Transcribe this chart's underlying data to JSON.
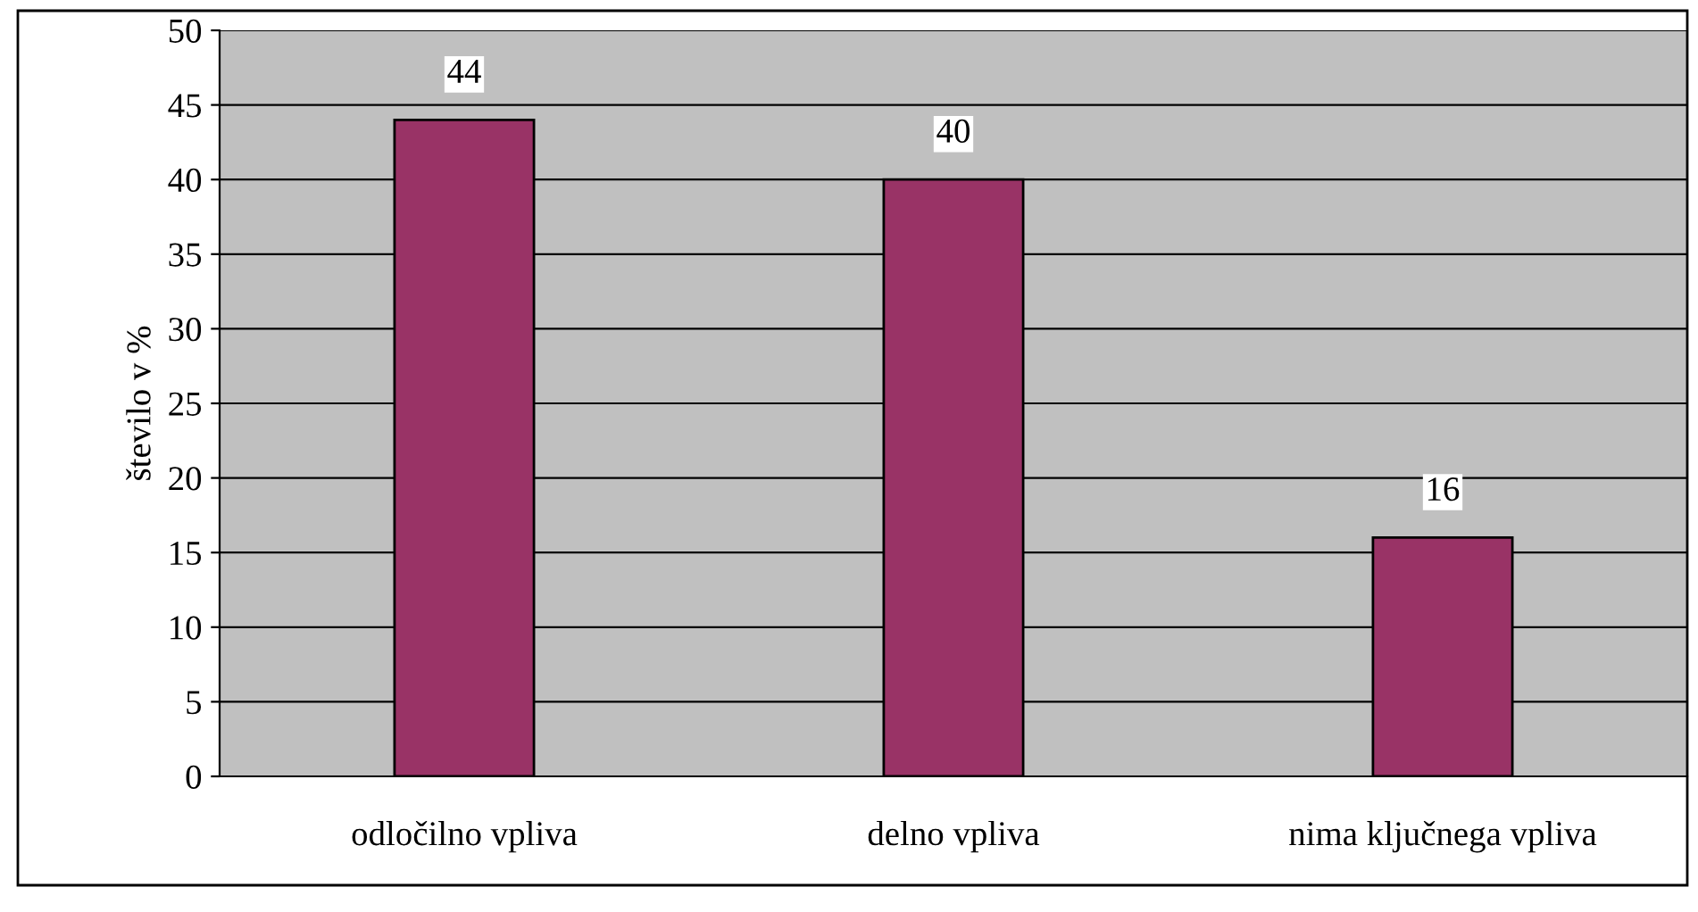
{
  "chart_data": {
    "type": "bar",
    "ylabel": "število v %",
    "categories": [
      "odločilno vpliva",
      "delno vpliva",
      "nima ključnega vpliva"
    ],
    "values": [
      44,
      40,
      16
    ],
    "color": "#993366",
    "ylim": [
      0,
      50
    ],
    "yticks": [
      0,
      5,
      10,
      15,
      20,
      25,
      30,
      35,
      40,
      45,
      50
    ],
    "grid": "y",
    "data_labels": true
  }
}
